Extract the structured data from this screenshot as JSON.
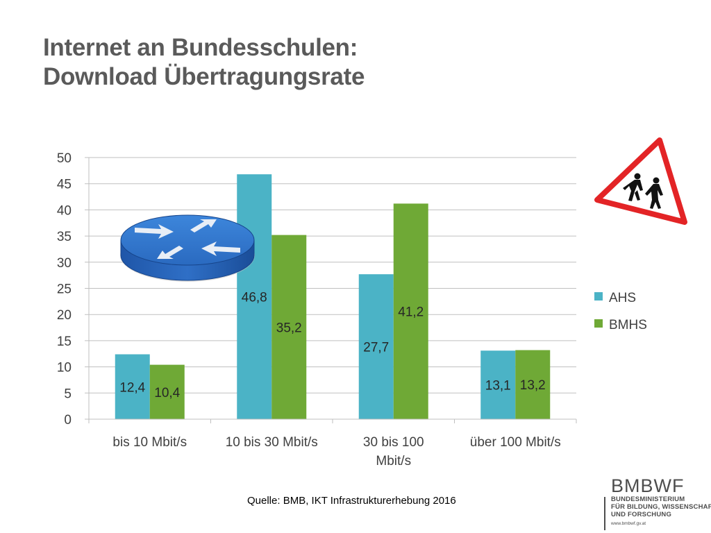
{
  "title": {
    "line1": "Internet an Bundesschulen:",
    "line2": "Download Übertragungsrate"
  },
  "source": "Quelle: BMB, IKT Infrastrukturerhebung 2016",
  "logo": {
    "brand": "BMBWF",
    "line1": "BUNDESMINISTERIUM",
    "line2": "FÜR BILDUNG, WISSENSCHAFT",
    "line3": "UND FORSCHUNG",
    "url": "www.bmbwf.gv.at"
  },
  "icons": {
    "sign": "school-children-warning-sign-icon",
    "router": "network-router-icon"
  },
  "chart_data": {
    "type": "bar",
    "categories": [
      "bis 10 Mbit/s",
      "10 bis 30 Mbit/s",
      "30 bis 100 Mbit/s",
      "über 100 Mbit/s"
    ],
    "category_lines": [
      [
        "bis 10 Mbit/s"
      ],
      [
        "10 bis 30 Mbit/s"
      ],
      [
        "30 bis 100",
        "Mbit/s"
      ],
      [
        "über 100 Mbit/s"
      ]
    ],
    "series": [
      {
        "name": "AHS",
        "color": "#4bb3c6",
        "values": [
          12.4,
          46.8,
          27.7,
          13.1
        ],
        "labels": [
          "12,4",
          "46,8",
          "27,7",
          "13,1"
        ]
      },
      {
        "name": "BMHS",
        "color": "#6fa936",
        "values": [
          10.4,
          35.2,
          41.2,
          13.2
        ],
        "labels": [
          "10,4",
          "35,2",
          "41,2",
          "13,2"
        ]
      }
    ],
    "ylim": [
      0,
      50
    ],
    "yticks": [
      0,
      5,
      10,
      15,
      20,
      25,
      30,
      35,
      40,
      45,
      50
    ],
    "grid": true,
    "legend": "right",
    "xlabel": "",
    "ylabel": ""
  }
}
